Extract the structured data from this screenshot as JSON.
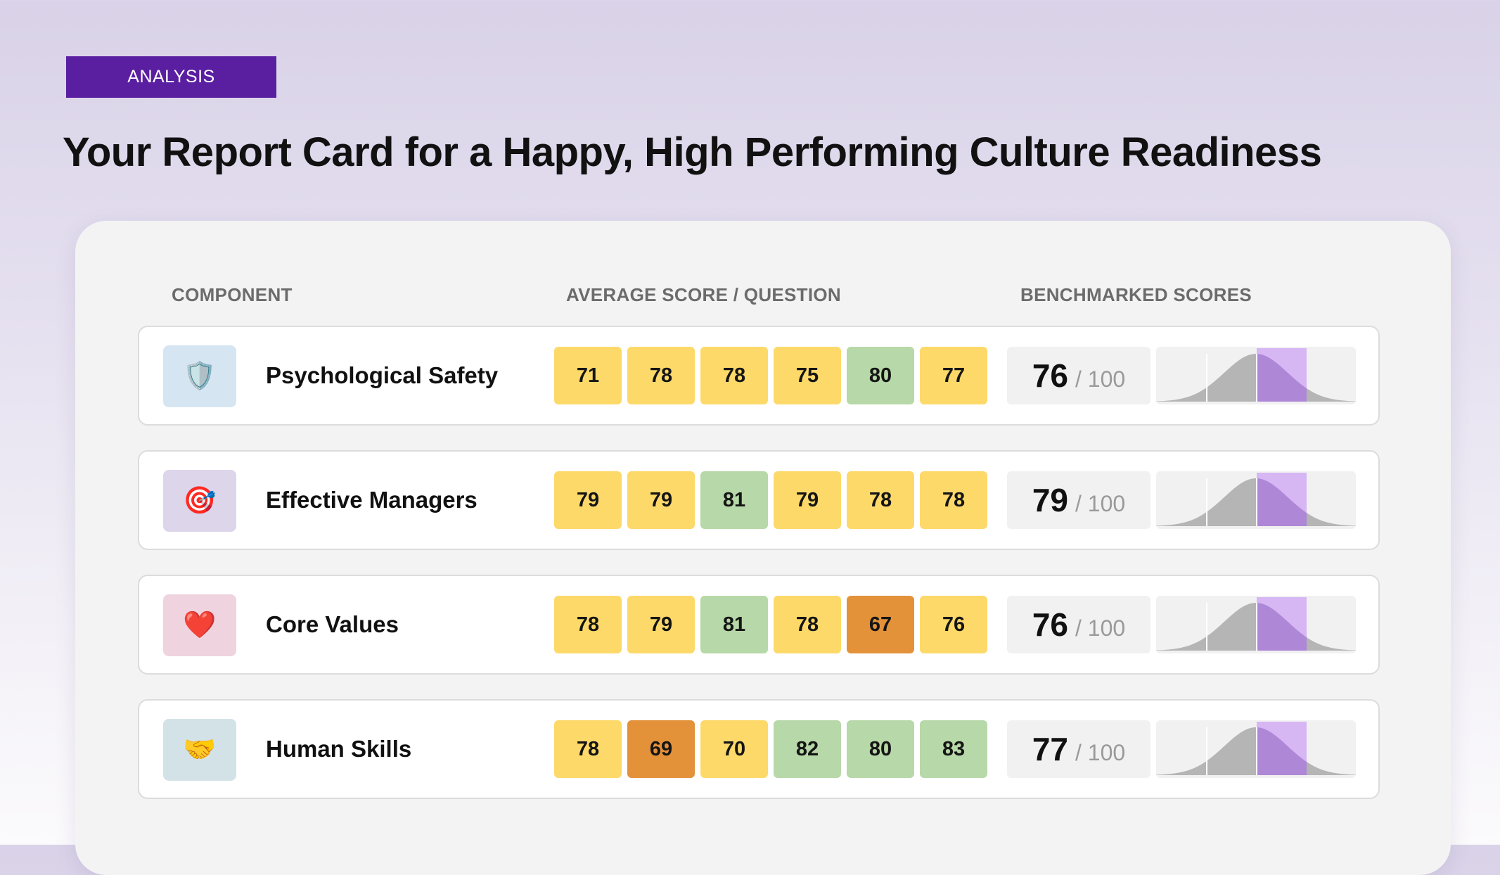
{
  "header": {
    "tag": "ANALYSIS",
    "title": "Your Report Card for a Happy, High Performing Culture Readiness"
  },
  "columns": {
    "component": "COMPONENT",
    "average": "AVERAGE SCORE / QUESTION",
    "benchmarked": "BENCHMARKED SCORES"
  },
  "colors": {
    "yellow": "#fdd969",
    "green": "#b7d8a8",
    "orange": "#e3923a",
    "curve_gray": "#b5b5b5",
    "curve_purple": "#ae88d6",
    "band_purple": "#d7b6f4"
  },
  "rows": [
    {
      "name": "Psychological Safety",
      "icon": "shield-icon",
      "icon_glyph": "🛡️",
      "icon_bg": "#d6e5f2",
      "scores": [
        {
          "value": "71",
          "level": "yellow"
        },
        {
          "value": "78",
          "level": "yellow"
        },
        {
          "value": "78",
          "level": "yellow"
        },
        {
          "value": "75",
          "level": "yellow"
        },
        {
          "value": "80",
          "level": "green"
        },
        {
          "value": "77",
          "level": "yellow"
        }
      ],
      "benchmark": "76",
      "benchmark_max": "/ 100"
    },
    {
      "name": "Effective Managers",
      "icon": "target-icon",
      "icon_glyph": "🎯",
      "icon_bg": "#ddd5ea",
      "scores": [
        {
          "value": "79",
          "level": "yellow"
        },
        {
          "value": "79",
          "level": "yellow"
        },
        {
          "value": "81",
          "level": "green"
        },
        {
          "value": "79",
          "level": "yellow"
        },
        {
          "value": "78",
          "level": "yellow"
        },
        {
          "value": "78",
          "level": "yellow"
        }
      ],
      "benchmark": "79",
      "benchmark_max": "/ 100"
    },
    {
      "name": "Core Values",
      "icon": "heart-icon",
      "icon_glyph": "❤️",
      "icon_bg": "#efd3df",
      "scores": [
        {
          "value": "78",
          "level": "yellow"
        },
        {
          "value": "79",
          "level": "yellow"
        },
        {
          "value": "81",
          "level": "green"
        },
        {
          "value": "78",
          "level": "yellow"
        },
        {
          "value": "67",
          "level": "orange"
        },
        {
          "value": "76",
          "level": "yellow"
        }
      ],
      "benchmark": "76",
      "benchmark_max": "/ 100"
    },
    {
      "name": "Human Skills",
      "icon": "handshake-icon",
      "icon_glyph": "🤝",
      "icon_bg": "#d3e2e6",
      "scores": [
        {
          "value": "78",
          "level": "yellow"
        },
        {
          "value": "69",
          "level": "orange"
        },
        {
          "value": "70",
          "level": "yellow"
        },
        {
          "value": "82",
          "level": "green"
        },
        {
          "value": "80",
          "level": "green"
        },
        {
          "value": "83",
          "level": "green"
        }
      ],
      "benchmark": "77",
      "benchmark_max": "/ 100"
    }
  ]
}
